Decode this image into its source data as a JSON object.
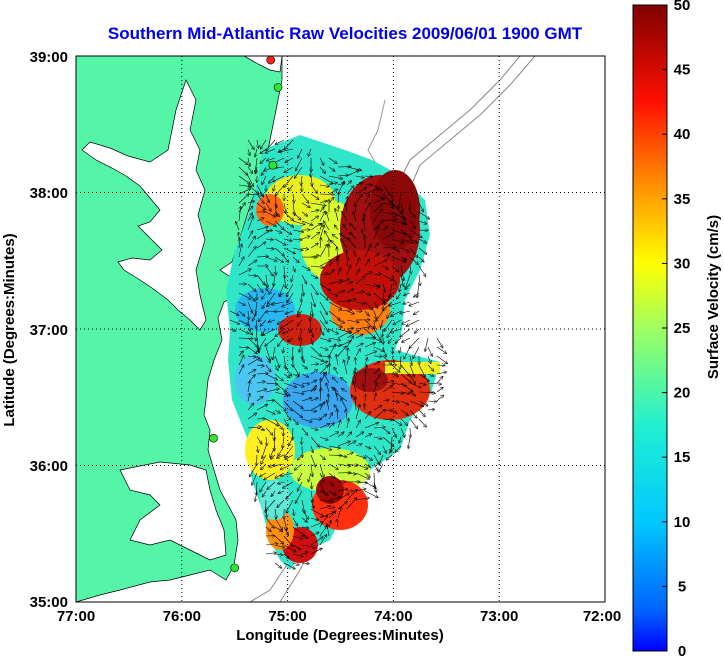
{
  "title": "Southern Mid-Atlantic Raw Velocities 2009/06/01 1900 GMT",
  "xlabel": "Longitude (Degrees:Minutes)",
  "ylabel": "Latitude (Degrees:Minutes)",
  "x_ticks": [
    "77:00",
    "76:00",
    "75:00",
    "74:00",
    "73:00",
    "72:00"
  ],
  "y_ticks": [
    "39:00",
    "38:00",
    "37:00",
    "36:00",
    "35:00"
  ],
  "colorbar": {
    "label": "Surface Velocity (cm/s)",
    "ticks": [
      "50",
      "45",
      "40",
      "35",
      "30",
      "25",
      "20",
      "15",
      "10",
      "5",
      "0"
    ]
  },
  "colors": {
    "land": "#55f5a8",
    "title": "#0000ee",
    "site_marker": "#2ee62e",
    "site_marker_alt": "#ff2020"
  },
  "chart_data": {
    "type": "heatmap",
    "title": "Southern Mid-Atlantic Raw Velocities 2009/06/01 1900 GMT",
    "xlabel": "Longitude (Degrees:Minutes)",
    "ylabel": "Latitude (Degrees:Minutes)",
    "xlim": [
      -77,
      -72
    ],
    "ylim": [
      35,
      39
    ],
    "clim": [
      0,
      50
    ],
    "colormap": "jet",
    "grid": true,
    "colorbar_label": "Surface Velocity (cm/s)",
    "stations": [
      {
        "lon": -75.16,
        "lat": 38.97,
        "color": "#ff2020"
      },
      {
        "lon": -75.09,
        "lat": 38.77,
        "color": "#2ee62e"
      },
      {
        "lon": -75.14,
        "lat": 38.2,
        "color": "#2ee62e"
      },
      {
        "lon": -75.7,
        "lat": 36.2,
        "color": "#2ee62e"
      },
      {
        "lon": -75.5,
        "lat": 35.25,
        "color": "#2ee62e"
      }
    ]
  }
}
